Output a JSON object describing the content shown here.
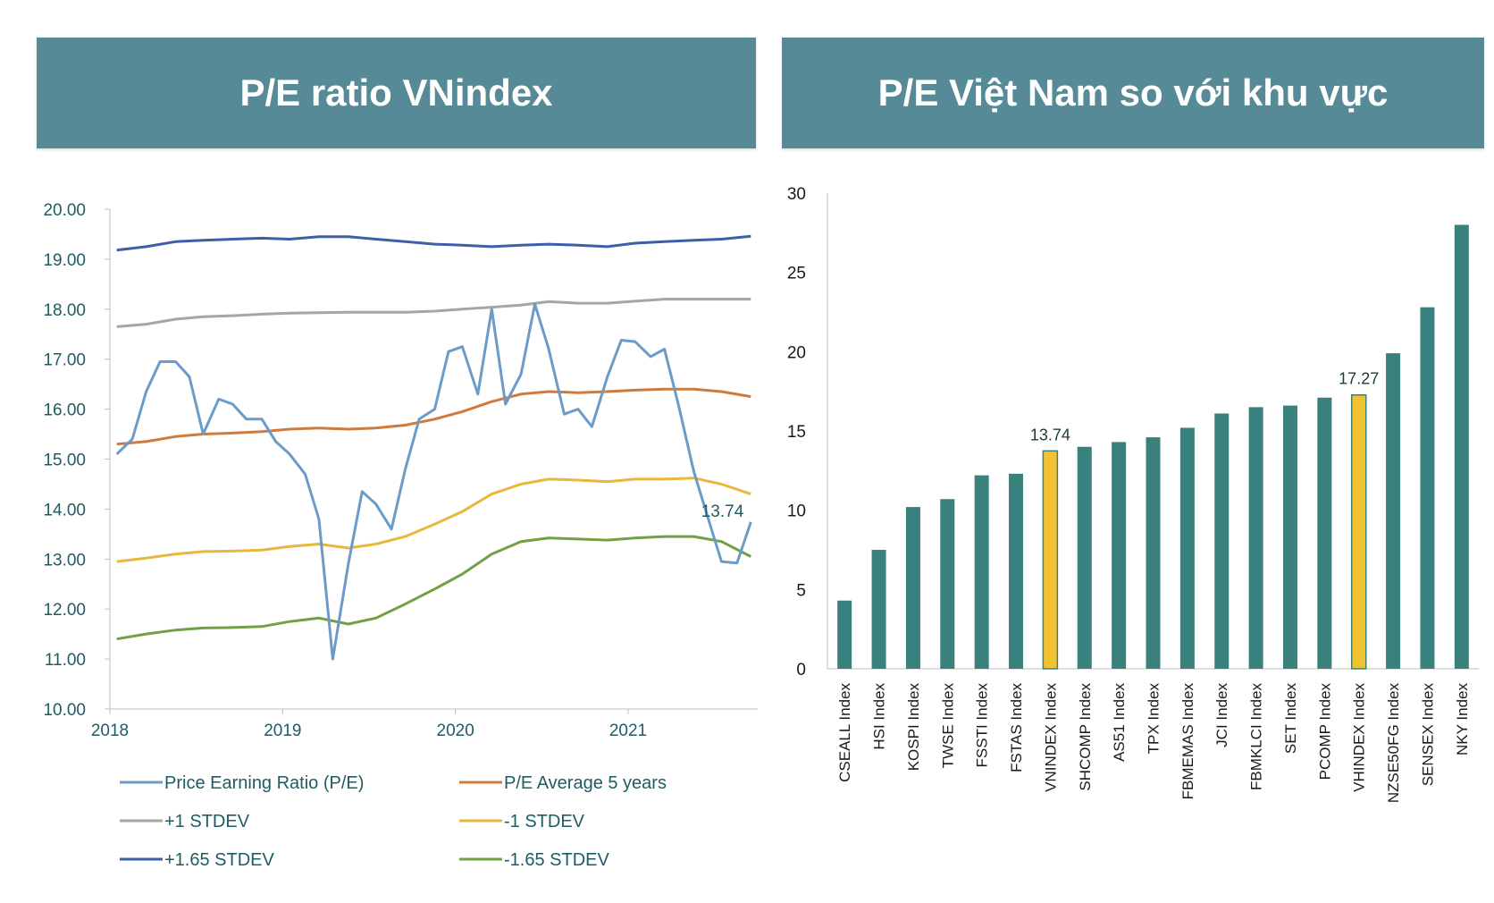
{
  "left_panel": {
    "title": "P/E ratio VNindex"
  },
  "right_panel": {
    "title": "P/E Việt Nam so với khu vực"
  },
  "colors": {
    "banner": "#568a97",
    "pe": "#6a9bc9",
    "avg": "#d17a3e",
    "plus1": "#a6a6a6",
    "minus1": "#e8b83c",
    "plus165": "#3d5fa8",
    "minus165": "#72a045",
    "bar": "#3a807c",
    "highlight": "#f2c230"
  },
  "chart_data": [
    {
      "type": "line",
      "title": "P/E ratio VNindex",
      "ylim": [
        10,
        20
      ],
      "yticks": [
        "10.00",
        "11.00",
        "12.00",
        "13.00",
        "14.00",
        "15.00",
        "16.00",
        "17.00",
        "18.00",
        "19.00",
        "20.00"
      ],
      "xlim": [
        2018,
        2021.75
      ],
      "xticks": [
        "2018",
        "2019",
        "2020",
        "2021"
      ],
      "annotation": "13.74",
      "legend": [
        "Price Earning Ratio (P/E)",
        "P/E Average 5 years",
        "+1 STDEV",
        "-1 STDEV",
        "+1.65 STDEV",
        "-1.65 STDEV"
      ],
      "series": [
        {
          "name": "Price Earning Ratio (P/E)",
          "key": "pe",
          "x": [
            2018.04,
            2018.13,
            2018.21,
            2018.29,
            2018.38,
            2018.46,
            2018.54,
            2018.63,
            2018.71,
            2018.79,
            2018.88,
            2018.96,
            2019.04,
            2019.13,
            2019.21,
            2019.29,
            2019.38,
            2019.46,
            2019.54,
            2019.63,
            2019.71,
            2019.79,
            2019.88,
            2019.96,
            2020.04,
            2020.13,
            2020.21,
            2020.29,
            2020.38,
            2020.46,
            2020.54,
            2020.63,
            2020.71,
            2020.79,
            2020.88,
            2020.96,
            2021.04,
            2021.13,
            2021.21,
            2021.29,
            2021.38,
            2021.46,
            2021.54,
            2021.63,
            2021.71
          ],
          "values": [
            15.1,
            15.4,
            16.35,
            16.95,
            16.95,
            16.65,
            15.5,
            16.2,
            16.1,
            15.8,
            15.8,
            15.35,
            15.1,
            14.7,
            13.8,
            11.0,
            12.9,
            14.35,
            14.1,
            13.6,
            14.8,
            15.8,
            16.0,
            17.15,
            17.25,
            16.3,
            18.0,
            16.1,
            16.7,
            18.1,
            17.2,
            15.9,
            16.0,
            15.65,
            16.65,
            17.38,
            17.35,
            17.05,
            17.2,
            16.1,
            14.75,
            13.85,
            12.95,
            12.92,
            13.74
          ]
        },
        {
          "name": "P/E Average 5 years",
          "key": "avg",
          "x": [
            2018.04,
            2018.21,
            2018.38,
            2018.54,
            2018.71,
            2018.88,
            2019.04,
            2019.21,
            2019.38,
            2019.54,
            2019.71,
            2019.88,
            2020.04,
            2020.21,
            2020.38,
            2020.54,
            2020.71,
            2020.88,
            2021.04,
            2021.21,
            2021.38,
            2021.54,
            2021.71
          ],
          "values": [
            15.3,
            15.35,
            15.45,
            15.5,
            15.52,
            15.55,
            15.6,
            15.62,
            15.6,
            15.62,
            15.68,
            15.8,
            15.95,
            16.15,
            16.3,
            16.35,
            16.33,
            16.35,
            16.38,
            16.4,
            16.4,
            16.35,
            16.25
          ]
        },
        {
          "name": "+1 STDEV",
          "key": "plus1",
          "x": [
            2018.04,
            2018.21,
            2018.38,
            2018.54,
            2018.71,
            2018.88,
            2019.04,
            2019.21,
            2019.38,
            2019.54,
            2019.71,
            2019.88,
            2020.04,
            2020.21,
            2020.38,
            2020.54,
            2020.71,
            2020.88,
            2021.04,
            2021.21,
            2021.38,
            2021.54,
            2021.71
          ],
          "values": [
            17.65,
            17.7,
            17.8,
            17.85,
            17.87,
            17.9,
            17.92,
            17.93,
            17.94,
            17.94,
            17.94,
            17.96,
            18.0,
            18.04,
            18.08,
            18.15,
            18.12,
            18.12,
            18.16,
            18.2,
            18.2,
            18.2,
            18.2
          ]
        },
        {
          "name": "-1 STDEV",
          "key": "minus1",
          "x": [
            2018.04,
            2018.21,
            2018.38,
            2018.54,
            2018.71,
            2018.88,
            2019.04,
            2019.21,
            2019.38,
            2019.54,
            2019.71,
            2019.88,
            2020.04,
            2020.21,
            2020.38,
            2020.54,
            2020.71,
            2020.88,
            2021.04,
            2021.21,
            2021.38,
            2021.54,
            2021.71
          ],
          "values": [
            12.95,
            13.02,
            13.1,
            13.15,
            13.16,
            13.18,
            13.25,
            13.3,
            13.22,
            13.3,
            13.45,
            13.7,
            13.95,
            14.3,
            14.5,
            14.6,
            14.58,
            14.55,
            14.6,
            14.6,
            14.62,
            14.5,
            14.3
          ]
        },
        {
          "name": "+1.65 STDEV",
          "key": "plus165",
          "x": [
            2018.04,
            2018.21,
            2018.38,
            2018.54,
            2018.71,
            2018.88,
            2019.04,
            2019.21,
            2019.38,
            2019.54,
            2019.71,
            2019.88,
            2020.04,
            2020.21,
            2020.38,
            2020.54,
            2020.71,
            2020.88,
            2021.04,
            2021.21,
            2021.38,
            2021.54,
            2021.71
          ],
          "values": [
            19.18,
            19.25,
            19.35,
            19.38,
            19.4,
            19.42,
            19.4,
            19.45,
            19.45,
            19.4,
            19.35,
            19.3,
            19.28,
            19.25,
            19.28,
            19.3,
            19.28,
            19.25,
            19.32,
            19.35,
            19.38,
            19.4,
            19.46
          ]
        },
        {
          "name": "-1.65 STDEV",
          "key": "minus165",
          "x": [
            2018.04,
            2018.21,
            2018.38,
            2018.54,
            2018.71,
            2018.88,
            2019.04,
            2019.21,
            2019.38,
            2019.54,
            2019.71,
            2019.88,
            2020.04,
            2020.21,
            2020.38,
            2020.54,
            2020.71,
            2020.88,
            2021.04,
            2021.21,
            2021.38,
            2021.54,
            2021.71
          ],
          "values": [
            11.4,
            11.5,
            11.58,
            11.62,
            11.63,
            11.65,
            11.75,
            11.82,
            11.7,
            11.82,
            12.1,
            12.4,
            12.7,
            13.1,
            13.35,
            13.42,
            13.4,
            13.38,
            13.42,
            13.45,
            13.45,
            13.35,
            13.05
          ]
        }
      ]
    },
    {
      "type": "bar",
      "title": "P/E Việt Nam so với khu vực",
      "ylim": [
        0,
        30
      ],
      "yticks": [
        "0",
        "5",
        "10",
        "15",
        "20",
        "25",
        "30"
      ],
      "categories": [
        "CSEALL Index",
        "HSI Index",
        "KOSPI Index",
        "TWSE Index",
        "FSSTI Index",
        "FSTAS Index",
        "VNINDEX Index",
        "SHCOMP Index",
        "AS51 Index",
        "TPX Index",
        "FBMEMAS Index",
        "JCI Index",
        "FBMKLCI Index",
        "SET Index",
        "PCOMP Index",
        "VHINDEX Index",
        "NZSE50FG Index",
        "SENSEX Index",
        "NKY Index"
      ],
      "values": [
        4.3,
        7.5,
        10.2,
        10.7,
        12.2,
        12.3,
        13.74,
        14.0,
        14.3,
        14.6,
        15.2,
        16.1,
        16.5,
        16.6,
        17.1,
        17.27,
        19.9,
        22.8,
        28.0
      ],
      "highlight": [
        "VNINDEX Index",
        "VHINDEX Index"
      ],
      "data_labels": [
        {
          "category": "VNINDEX Index",
          "text": "13.74"
        },
        {
          "category": "VHINDEX Index",
          "text": "17.27"
        }
      ]
    }
  ]
}
